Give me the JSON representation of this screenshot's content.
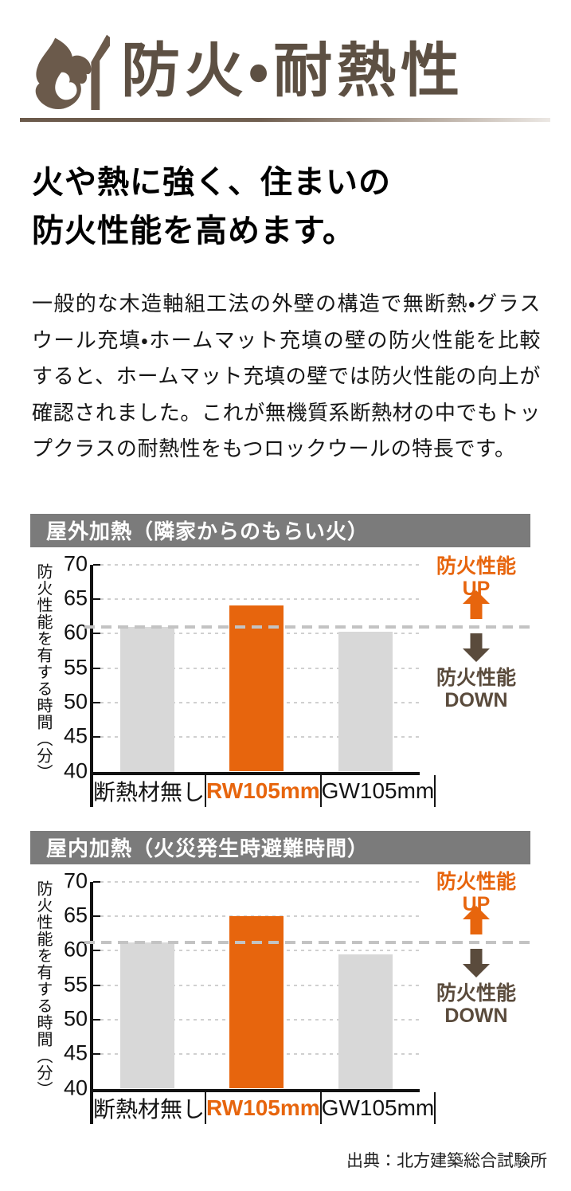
{
  "header": {
    "title": "防火・耐熱性",
    "icon": "flame-and-match-icon"
  },
  "lead": {
    "line1": "火や熱に強く、住まいの",
    "line2": "防火性能を高めます。"
  },
  "paragraph": "一般的な木造軸組工法の外壁の構造で無断熱・グラスウール充填・ホームマット充填の壁の防火性能を比較すると、ホームマット充填の壁では防火性能の向上が確認されました。これが無機質系断熱材の中でもトップクラスの耐熱性をもつロックウールの特長です。",
  "annotation": {
    "up_text": "防火性能",
    "up_word": "UP",
    "down_text": "防火性能",
    "down_word": "DOWN"
  },
  "source": "出典：北方建築総合試験所",
  "colors": {
    "accent_orange": "#e7650d",
    "bar_gray": "#d8d8d8",
    "header_bar_gray": "#7b7b7b",
    "title_brown": "#5d5043",
    "down_brown": "#5a4b3c",
    "dashed_gray": "#c3c3c3"
  },
  "chart_data": [
    {
      "type": "bar",
      "title": "屋外加熱（隣家からのもらい火）",
      "ylabel": "防火性能を有する時間（分）",
      "xlabel": "",
      "categories": [
        "断熱材無し",
        "RW105mm",
        "GW105mm"
      ],
      "values": [
        61,
        64.1,
        60.2
      ],
      "highlight_index": 1,
      "ylim": [
        40,
        70
      ],
      "yticks": [
        40,
        45,
        50,
        55,
        60,
        65,
        70
      ],
      "reference_line": 61,
      "grid": true,
      "legend_position": "none"
    },
    {
      "type": "bar",
      "title": "屋内加熱（火災発生時避難時間）",
      "ylabel": "防火性能を有する時間（分）",
      "xlabel": "",
      "categories": [
        "断熱材無し",
        "RW105mm",
        "GW105mm"
      ],
      "values": [
        61.2,
        65,
        59.5
      ],
      "highlight_index": 1,
      "ylim": [
        40,
        70
      ],
      "yticks": [
        40,
        45,
        50,
        55,
        60,
        65,
        70
      ],
      "reference_line": 61.2,
      "grid": true,
      "legend_position": "none"
    }
  ]
}
